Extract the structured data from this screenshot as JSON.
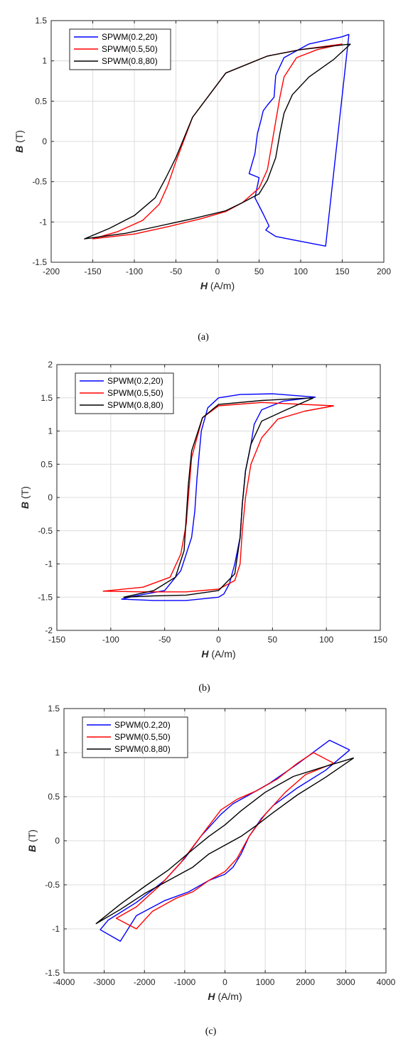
{
  "colors": {
    "blue": "#0000ff",
    "red": "#ff0000",
    "black": "#000000",
    "grid": "#dcdcdc",
    "axis": "#262626"
  },
  "chart_data": [
    {
      "type": "line",
      "caption": "(a)",
      "xlabel_var": "H",
      "xlabel_unit": " (A/m)",
      "ylabel_var": "B",
      "ylabel_unit": " (T)",
      "xlim": [
        -200,
        200
      ],
      "ylim": [
        -1.5,
        1.5
      ],
      "xticks": [
        -200,
        -150,
        -100,
        -50,
        0,
        50,
        100,
        150,
        200
      ],
      "yticks": [
        -1.5,
        -1,
        -0.5,
        0,
        0.5,
        1,
        1.5
      ],
      "xtick_labels": [
        "-200",
        "-150",
        "-100",
        "-50",
        "0",
        "50",
        "100",
        "150",
        "200"
      ],
      "ytick_labels": [
        "-1.5",
        "-1",
        "-0.5",
        "0",
        "0.5",
        "1",
        "1.5"
      ],
      "grid": true,
      "legend": "top-left",
      "series": [
        {
          "name": "SPWM(0.2,20)",
          "color": "#0000ff",
          "x": [
            158,
            150,
            110,
            80,
            70,
            68,
            60,
            55,
            52,
            48,
            45,
            38,
            50,
            45,
            55,
            62,
            58,
            70,
            90,
            110,
            130,
            158
          ],
          "y": [
            1.33,
            1.3,
            1.21,
            1.04,
            0.82,
            0.55,
            0.45,
            0.38,
            0.25,
            0.1,
            -0.15,
            -0.4,
            -0.45,
            -0.7,
            -0.9,
            -1.05,
            -1.1,
            -1.18,
            -1.22,
            -1.26,
            -1.3,
            1.33
          ]
        },
        {
          "name": "SPWM(0.5,50)",
          "color": "#ff0000",
          "x": [
            150,
            120,
            95,
            80,
            75,
            70,
            65,
            60,
            50,
            30,
            10,
            -20,
            -60,
            -100,
            -150,
            -120,
            -90,
            -70,
            -60,
            -50,
            -30,
            10,
            60,
            100,
            150
          ],
          "y": [
            1.21,
            1.14,
            1.04,
            0.8,
            0.55,
            0.25,
            -0.05,
            -0.35,
            -0.58,
            -0.76,
            -0.87,
            -0.96,
            -1.06,
            -1.15,
            -1.21,
            -1.12,
            -0.98,
            -0.78,
            -0.55,
            -0.25,
            0.3,
            0.85,
            1.06,
            1.14,
            1.21
          ]
        },
        {
          "name": "SPWM(0.8,80)",
          "color": "#000000",
          "x": [
            160,
            140,
            110,
            90,
            80,
            75,
            70,
            60,
            50,
            30,
            10,
            -30,
            -70,
            -110,
            -160,
            -130,
            -100,
            -75,
            -62,
            -50,
            -30,
            10,
            60,
            100,
            160
          ],
          "y": [
            1.21,
            1.02,
            0.8,
            0.58,
            0.35,
            0.1,
            -0.2,
            -0.48,
            -0.65,
            -0.76,
            -0.86,
            -0.96,
            -1.05,
            -1.14,
            -1.21,
            -1.08,
            -0.92,
            -0.7,
            -0.45,
            -0.2,
            0.3,
            0.85,
            1.06,
            1.14,
            1.21
          ]
        }
      ]
    },
    {
      "type": "line",
      "caption": "(b)",
      "xlabel_var": "H",
      "xlabel_unit": " (A/m)",
      "ylabel_var": "B",
      "ylabel_unit": " (T)",
      "xlim": [
        -150,
        150
      ],
      "ylim": [
        -2,
        2
      ],
      "xticks": [
        -150,
        -100,
        -50,
        0,
        50,
        100,
        150
      ],
      "yticks": [
        -2,
        -1.5,
        -1,
        -0.5,
        0,
        0.5,
        1,
        1.5,
        2
      ],
      "xtick_labels": [
        "-150",
        "-100",
        "-50",
        "0",
        "50",
        "100",
        "150"
      ],
      "ytick_labels": [
        "-2",
        "-1.5",
        "-1",
        "-0.5",
        "0",
        "0.5",
        "1",
        "1.5",
        "2"
      ],
      "grid": true,
      "legend": "top-left",
      "series": [
        {
          "name": "SPWM(0.2,20)",
          "color": "#0000ff",
          "x": [
            90,
            60,
            40,
            33,
            30,
            25,
            22,
            20,
            15,
            10,
            5,
            0,
            -30,
            -60,
            -90,
            -80,
            -50,
            -35,
            -25,
            -22,
            -20,
            -16,
            -10,
            0,
            20,
            50,
            90
          ],
          "y": [
            1.51,
            1.45,
            1.32,
            1.1,
            0.8,
            0.4,
            -0.1,
            -0.6,
            -1.0,
            -1.3,
            -1.45,
            -1.5,
            -1.55,
            -1.55,
            -1.53,
            -1.49,
            -1.4,
            -1.1,
            -0.6,
            -0.2,
            0.3,
            1.0,
            1.35,
            1.5,
            1.55,
            1.56,
            1.51
          ]
        },
        {
          "name": "SPWM(0.5,50)",
          "color": "#ff0000",
          "x": [
            107,
            80,
            55,
            40,
            30,
            25,
            22,
            20,
            15,
            0,
            -30,
            -70,
            -107,
            -70,
            -45,
            -35,
            -30,
            -28,
            -25,
            -15,
            0,
            40,
            107
          ],
          "y": [
            1.38,
            1.3,
            1.18,
            0.9,
            0.5,
            0.0,
            -0.5,
            -1.0,
            -1.25,
            -1.38,
            -1.42,
            -1.42,
            -1.41,
            -1.35,
            -1.2,
            -0.85,
            -0.4,
            0.0,
            0.6,
            1.2,
            1.38,
            1.43,
            1.38
          ]
        },
        {
          "name": "SPWM(0.8,80)",
          "color": "#000000",
          "x": [
            88,
            60,
            40,
            30,
            25,
            22,
            20,
            15,
            0,
            -30,
            -60,
            -88,
            -60,
            -40,
            -32,
            -30,
            -28,
            -25,
            -15,
            0,
            40,
            88
          ],
          "y": [
            1.5,
            1.3,
            1.15,
            0.8,
            0.4,
            -0.1,
            -0.6,
            -1.15,
            -1.4,
            -1.47,
            -1.48,
            -1.5,
            -1.4,
            -1.2,
            -0.8,
            -0.3,
            0.2,
            0.7,
            1.2,
            1.4,
            1.46,
            1.5
          ]
        }
      ]
    },
    {
      "type": "line",
      "caption": "(c)",
      "xlabel_var": "H",
      "xlabel_unit": " (A/m)",
      "ylabel_var": "B",
      "ylabel_unit": " (T)",
      "xlim": [
        -4000,
        4000
      ],
      "ylim": [
        -1.5,
        1.5
      ],
      "xticks": [
        -4000,
        -3000,
        -2000,
        -1000,
        0,
        1000,
        2000,
        3000,
        4000
      ],
      "yticks": [
        -1.5,
        -1,
        -0.5,
        0,
        0.5,
        1,
        1.5
      ],
      "xtick_labels": [
        "-4000",
        "-3000",
        "-2000",
        "-1000",
        "0",
        "1000",
        "2000",
        "3000",
        "4000"
      ],
      "ytick_labels": [
        "-1.5",
        "-1",
        "-0.5",
        "0",
        "0.5",
        "1",
        "1.5"
      ],
      "grid": true,
      "legend": "top-left",
      "series": [
        {
          "name": "SPWM(0.2,20)",
          "color": "#0000ff",
          "x": [
            3100,
            2500,
            1800,
            1200,
            900,
            600,
            400,
            200,
            0,
            -400,
            -900,
            -1500,
            -2200,
            -2600,
            -3100,
            -2900,
            -2200,
            -1500,
            -1000,
            -600,
            -100,
            200,
            600,
            1100,
            1800,
            2600,
            3100
          ],
          "y": [
            1.03,
            0.8,
            0.6,
            0.4,
            0.25,
            0.05,
            -0.15,
            -0.3,
            -0.38,
            -0.45,
            -0.58,
            -0.68,
            -0.85,
            -1.14,
            -1.01,
            -0.9,
            -0.7,
            -0.45,
            -0.2,
            0.05,
            0.3,
            0.42,
            0.52,
            0.65,
            0.87,
            1.14,
            1.03
          ]
        },
        {
          "name": "SPWM(0.5,50)",
          "color": "#ff0000",
          "x": [
            2700,
            2000,
            1500,
            1000,
            600,
            300,
            0,
            -400,
            -800,
            -1200,
            -1800,
            -2200,
            -2700,
            -2200,
            -1600,
            -1100,
            -600,
            -100,
            300,
            800,
            1300,
            1800,
            2200,
            2700
          ],
          "y": [
            0.88,
            0.75,
            0.55,
            0.3,
            0.05,
            -0.2,
            -0.35,
            -0.45,
            -0.58,
            -0.65,
            -0.8,
            -1.0,
            -0.88,
            -0.75,
            -0.5,
            -0.25,
            0.05,
            0.35,
            0.47,
            0.57,
            0.7,
            0.88,
            1.0,
            0.88
          ]
        },
        {
          "name": "SPWM(0.8,80)",
          "color": "#000000",
          "x": [
            3200,
            2500,
            1800,
            1200,
            800,
            400,
            0,
            -400,
            -800,
            -1400,
            -2000,
            -2600,
            -3200,
            -2600,
            -2000,
            -1400,
            -800,
            -400,
            0,
            400,
            1000,
            1700,
            2400,
            3200
          ],
          "y": [
            0.94,
            0.72,
            0.52,
            0.32,
            0.18,
            0.05,
            -0.05,
            -0.15,
            -0.3,
            -0.45,
            -0.6,
            -0.78,
            -0.94,
            -0.72,
            -0.52,
            -0.33,
            -0.1,
            0.05,
            0.18,
            0.34,
            0.55,
            0.73,
            0.83,
            0.94
          ]
        }
      ]
    }
  ]
}
